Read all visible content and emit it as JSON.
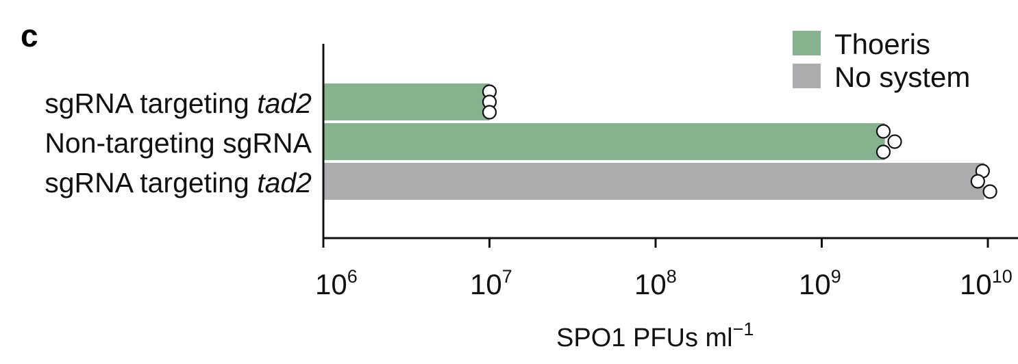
{
  "panel_label": "c",
  "chart_data": {
    "type": "bar",
    "orientation": "horizontal",
    "x_scale": "log",
    "xlim": [
      1000000,
      10000000000
    ],
    "xlabel": {
      "base": "SPO1 PFUs ml",
      "superscript": "−1"
    },
    "x_ticks": [
      {
        "value": 1000000,
        "base": "10",
        "exp": "6"
      },
      {
        "value": 10000000,
        "base": "10",
        "exp": "7"
      },
      {
        "value": 100000000,
        "base": "10",
        "exp": "8"
      },
      {
        "value": 1000000000,
        "base": "10",
        "exp": "9"
      },
      {
        "value": 10000000000,
        "base": "10",
        "exp": "10"
      }
    ],
    "categories": [
      {
        "prefix": "sgRNA targeting ",
        "italic": "tad2",
        "system": "Thoeris"
      },
      {
        "prefix": "Non-targeting sgRNA",
        "italic": "",
        "system": "Thoeris"
      },
      {
        "prefix": "sgRNA targeting ",
        "italic": "tad2",
        "system": "No system"
      }
    ],
    "values": [
      10000000,
      2400000000,
      9500000000
    ],
    "replicates": [
      [
        10000000,
        10000000,
        10000000
      ],
      [
        2350000000,
        2750000000,
        2350000000
      ],
      [
        9300000000,
        8700000000,
        10300000000
      ]
    ],
    "legend": {
      "position": "top-right",
      "entries": [
        {
          "name": "Thoeris",
          "color": "#86b28e"
        },
        {
          "name": "No system",
          "color": "#acacae"
        }
      ]
    },
    "grid": false
  }
}
